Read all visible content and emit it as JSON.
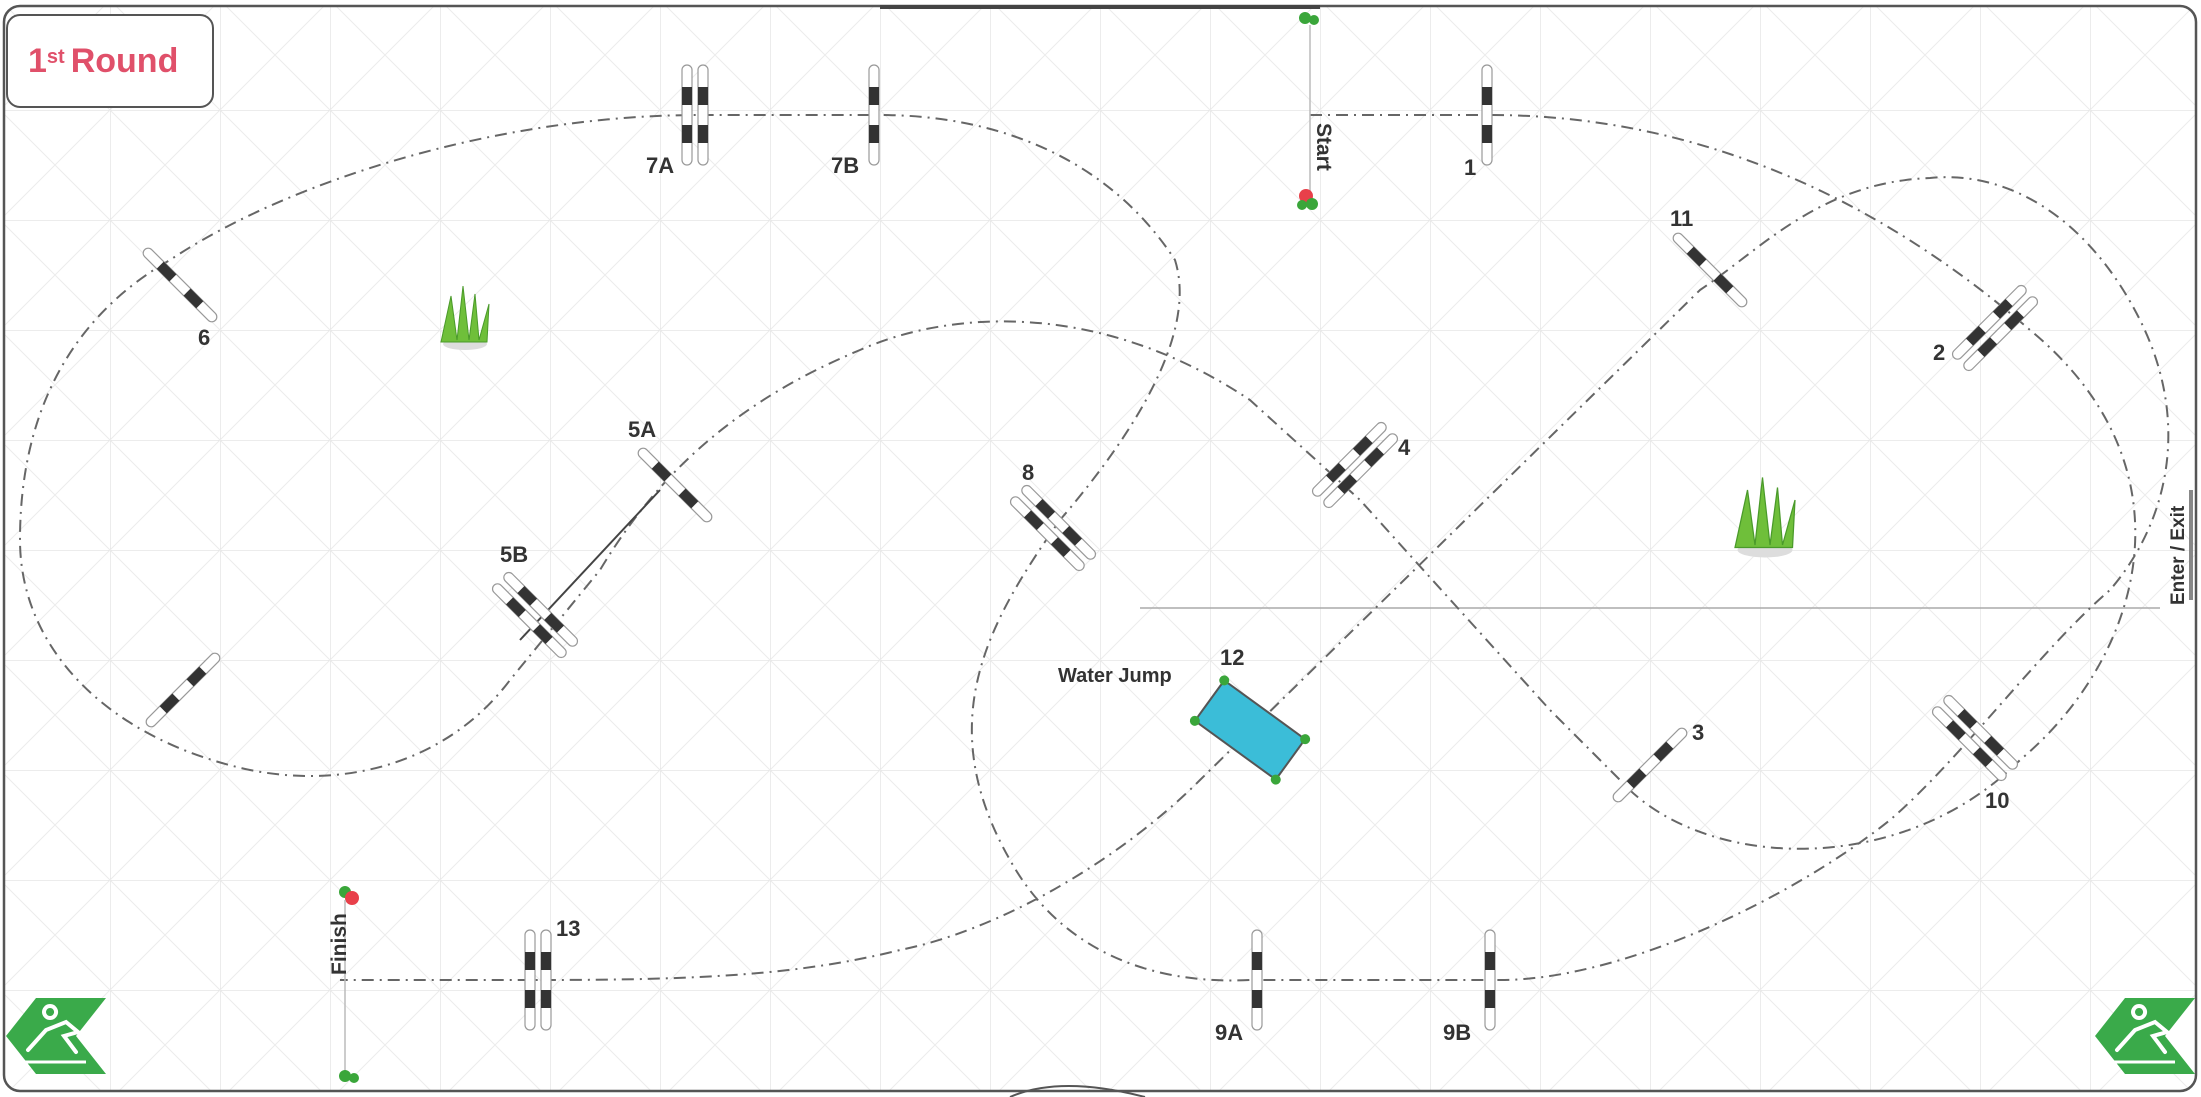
{
  "round": {
    "number": "1",
    "suffix": "st",
    "word": "Round"
  },
  "colors": {
    "round_text": "#e0506a",
    "flag_red": "#e8404a",
    "flag_green": "#3aa63a",
    "water": "#3bbdd8",
    "bush": "#6fbf3a",
    "logo": "#3aaa4a",
    "rail_dark": "#333333",
    "grid": "#d9d9d9"
  },
  "labels": {
    "start": "Start",
    "finish": "Finish",
    "enter_exit": "Enter / Exit",
    "water_jump": "Water Jump"
  },
  "obstacles": [
    {
      "id": "1",
      "label": "1"
    },
    {
      "id": "2",
      "label": "2"
    },
    {
      "id": "3",
      "label": "3"
    },
    {
      "id": "4",
      "label": "4"
    },
    {
      "id": "5A",
      "label": "5A"
    },
    {
      "id": "5B",
      "label": "5B"
    },
    {
      "id": "6",
      "label": "6"
    },
    {
      "id": "7A",
      "label": "7A"
    },
    {
      "id": "7B",
      "label": "7B"
    },
    {
      "id": "8",
      "label": "8"
    },
    {
      "id": "9A",
      "label": "9A"
    },
    {
      "id": "9B",
      "label": "9B"
    },
    {
      "id": "10",
      "label": "10"
    },
    {
      "id": "11",
      "label": "11"
    },
    {
      "id": "12",
      "label": "12"
    },
    {
      "id": "13",
      "label": "13"
    }
  ],
  "icons": {
    "logo": "equestrian-jumping-icon",
    "bush": "grass-bush-icon",
    "flag": "flag-icon"
  }
}
